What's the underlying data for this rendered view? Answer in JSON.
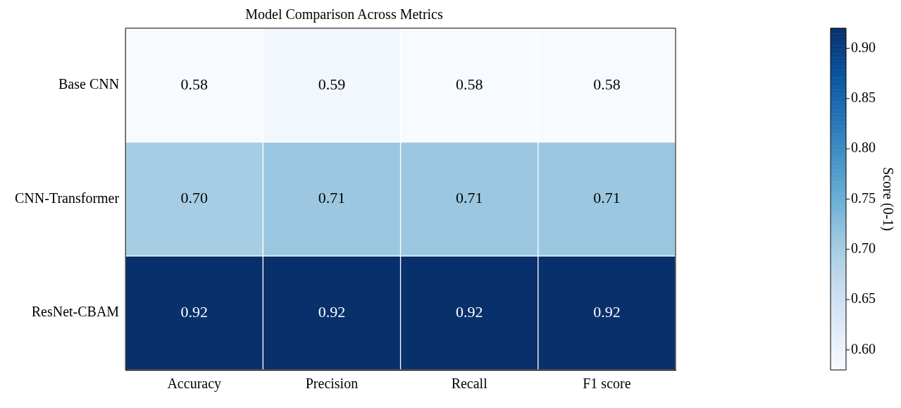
{
  "chart_data": {
    "type": "heatmap",
    "title": "Model Comparison Across Metrics",
    "clabel": "Score (0-1)",
    "categories": [
      "Accuracy",
      "Precision",
      "Recall",
      "F1 score"
    ],
    "y_categories": [
      "Base CNN",
      "CNN-Transformer",
      "ResNet-CBAM"
    ],
    "cells": [
      [
        0.58,
        0.59,
        0.58,
        0.58
      ],
      [
        0.7,
        0.71,
        0.71,
        0.71
      ],
      [
        0.92,
        0.92,
        0.92,
        0.92
      ]
    ],
    "cell_labels": [
      [
        "0.58",
        "0.59",
        "0.58",
        "0.58"
      ],
      [
        "0.70",
        "0.71",
        "0.71",
        "0.71"
      ],
      [
        "0.92",
        "0.92",
        "0.92",
        "0.92"
      ]
    ],
    "clim": [
      0.58,
      0.92
    ],
    "cticks": [
      {
        "value": 0.6,
        "label": "0.60"
      },
      0.65,
      {
        "value": 0.7,
        "label": "0.70"
      },
      0.75,
      {
        "value": 0.8,
        "label": "0.80"
      },
      0.85,
      {
        "value": 0.9,
        "label": "0.90"
      }
    ]
  }
}
